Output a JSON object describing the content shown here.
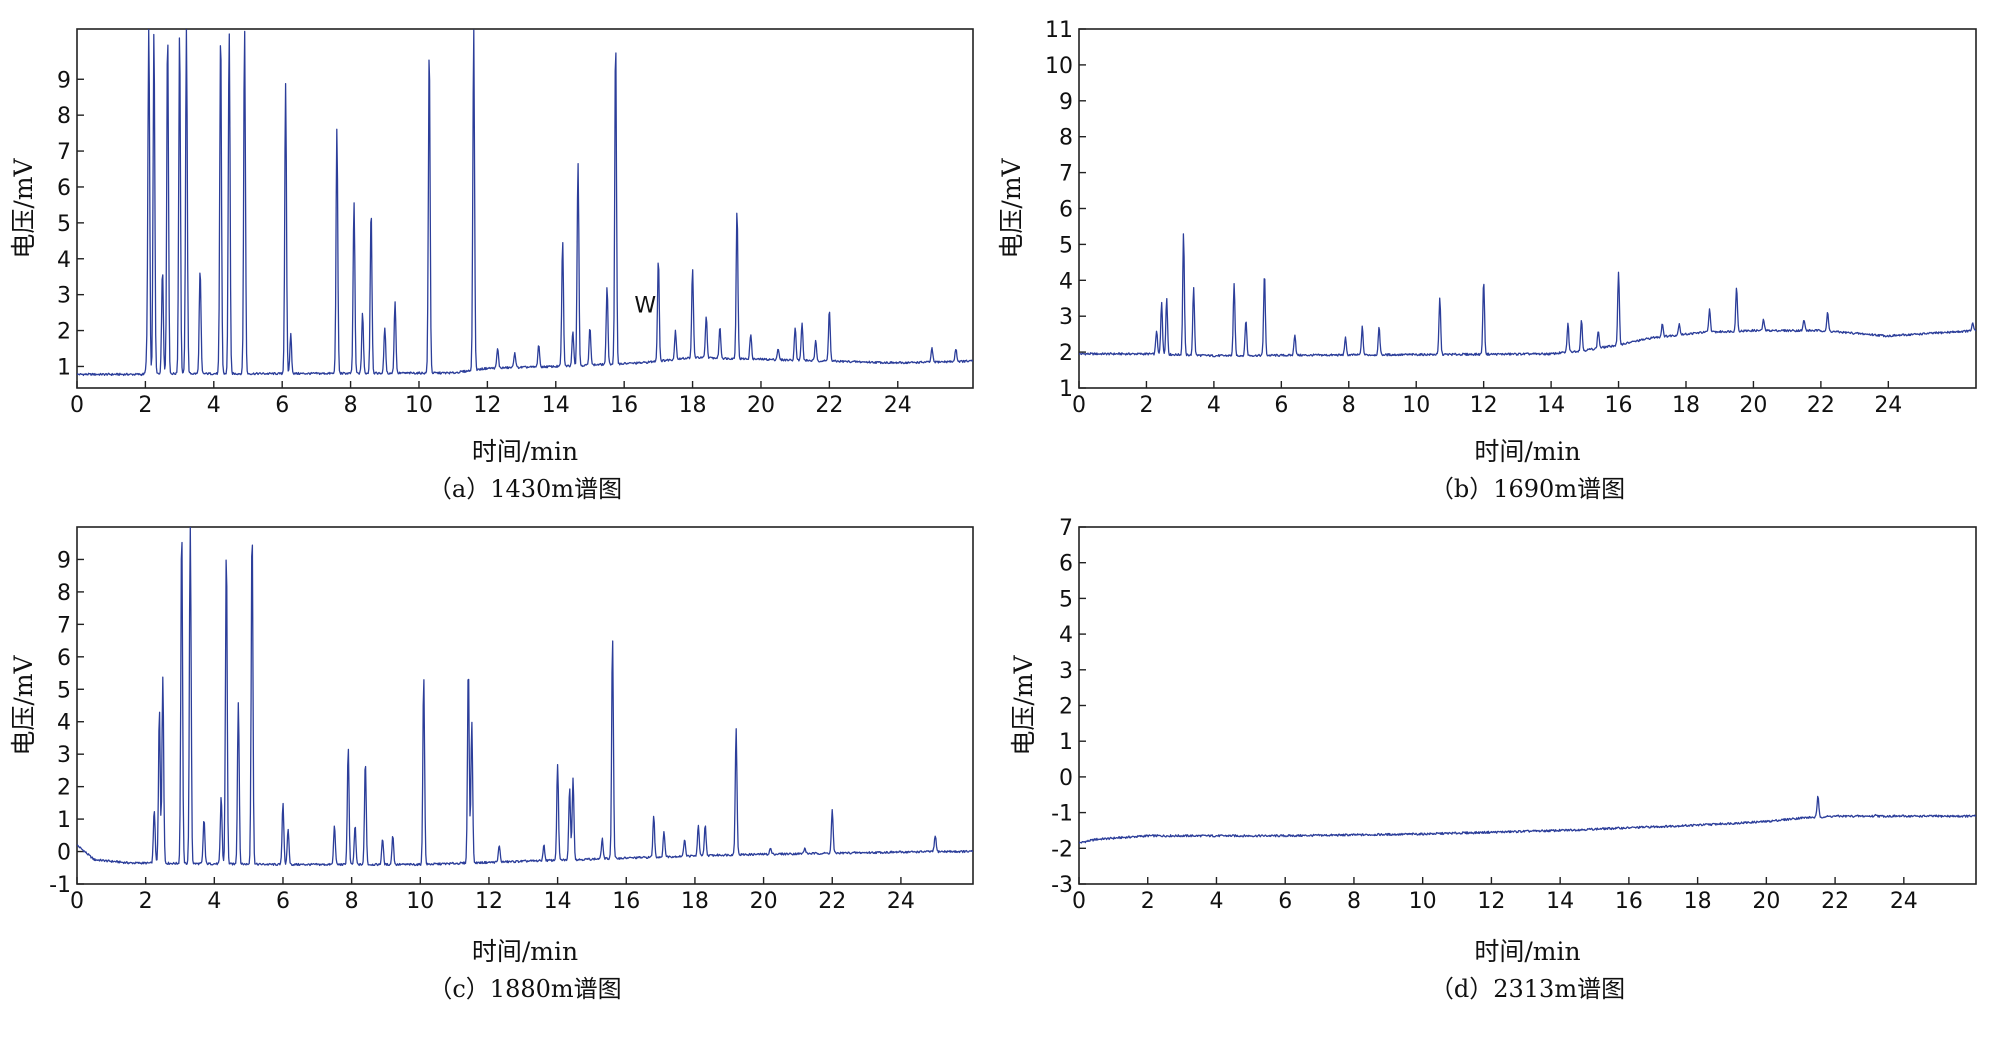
{
  "chart_data": [
    {
      "type": "line",
      "panel": "a",
      "caption": "（a）1430m谱图",
      "xlabel": "时间/min",
      "ylabel": "电压/mV",
      "xlim": [
        0,
        26.2
      ],
      "ylim": [
        0.4,
        10.4
      ],
      "xticks": [
        "0",
        "2",
        "4",
        "6",
        "8",
        "10",
        "12",
        "14",
        "16",
        "18",
        "20",
        "22",
        "24"
      ],
      "yticks": [
        "1",
        "2",
        "3",
        "4",
        "5",
        "6",
        "7",
        "8",
        "9"
      ],
      "annotations": [
        {
          "text": "W",
          "x": 16.3,
          "y": 2.5
        }
      ],
      "series": [
        {
          "name": "1430m",
          "baseline": [
            [
              0,
              0.78
            ],
            [
              1.9,
              0.78
            ],
            [
              2.0,
              0.8
            ],
            [
              6.0,
              0.8
            ],
            [
              11.0,
              0.82
            ],
            [
              12.0,
              0.95
            ],
            [
              14.0,
              1.0
            ],
            [
              16.5,
              1.1
            ],
            [
              18,
              1.25
            ],
            [
              20,
              1.2
            ],
            [
              22,
              1.15
            ],
            [
              24,
              1.1
            ],
            [
              26.2,
              1.15
            ]
          ],
          "peaks": [
            [
              2.05,
              1.4
            ],
            [
              2.1,
              10.4
            ],
            [
              2.25,
              10.4
            ],
            [
              2.5,
              3.7
            ],
            [
              2.65,
              10.4
            ],
            [
              3.0,
              10.4
            ],
            [
              3.2,
              10.4
            ],
            [
              3.6,
              3.7
            ],
            [
              4.2,
              10.4
            ],
            [
              4.45,
              10.4
            ],
            [
              4.9,
              10.4
            ],
            [
              6.1,
              8.9
            ],
            [
              6.25,
              1.9
            ],
            [
              7.6,
              7.6
            ],
            [
              8.1,
              5.6
            ],
            [
              8.35,
              2.5
            ],
            [
              8.6,
              5.4
            ],
            [
              9.0,
              2.1
            ],
            [
              9.3,
              2.8
            ],
            [
              10.3,
              9.9
            ],
            [
              11.6,
              10.4
            ],
            [
              12.3,
              1.5
            ],
            [
              12.8,
              1.4
            ],
            [
              13.5,
              1.6
            ],
            [
              14.2,
              4.5
            ],
            [
              14.5,
              2.0
            ],
            [
              14.65,
              6.7
            ],
            [
              15.0,
              2.1
            ],
            [
              15.5,
              3.2
            ],
            [
              15.75,
              10.1
            ],
            [
              17.0,
              4.0
            ],
            [
              17.5,
              2.0
            ],
            [
              18.0,
              3.7
            ],
            [
              18.4,
              2.4
            ],
            [
              18.8,
              2.1
            ],
            [
              19.3,
              5.4
            ],
            [
              19.7,
              1.9
            ],
            [
              20.5,
              1.5
            ],
            [
              21.0,
              2.1
            ],
            [
              21.2,
              2.2
            ],
            [
              21.6,
              1.7
            ],
            [
              22.0,
              2.6
            ],
            [
              25.0,
              1.5
            ],
            [
              25.7,
              1.5
            ]
          ]
        }
      ]
    },
    {
      "type": "line",
      "panel": "b",
      "caption": "（b）1690m谱图",
      "xlabel": "时间/min",
      "ylabel": "电压/mV",
      "xlim": [
        0,
        26.6
      ],
      "ylim": [
        1,
        11
      ],
      "xticks": [
        "0",
        "2",
        "4",
        "6",
        "8",
        "10",
        "12",
        "14",
        "16",
        "18",
        "20",
        "22",
        "24"
      ],
      "yticks": [
        "1",
        "2",
        "3",
        "4",
        "5",
        "6",
        "7",
        "8",
        "9",
        "10",
        "11"
      ],
      "series": [
        {
          "name": "1690m",
          "baseline": [
            [
              0,
              1.95
            ],
            [
              2,
              1.95
            ],
            [
              4,
              1.9
            ],
            [
              8,
              1.92
            ],
            [
              14,
              1.95
            ],
            [
              15,
              2.05
            ],
            [
              16,
              2.2
            ],
            [
              17,
              2.4
            ],
            [
              18.5,
              2.55
            ],
            [
              20,
              2.6
            ],
            [
              22,
              2.6
            ],
            [
              24,
              2.45
            ],
            [
              26.6,
              2.6
            ]
          ],
          "peaks": [
            [
              2.3,
              2.6
            ],
            [
              2.45,
              3.4
            ],
            [
              2.6,
              3.5
            ],
            [
              3.1,
              5.3
            ],
            [
              3.4,
              3.8
            ],
            [
              4.6,
              3.9
            ],
            [
              4.95,
              2.9
            ],
            [
              5.5,
              4.2
            ],
            [
              6.4,
              2.5
            ],
            [
              7.9,
              2.4
            ],
            [
              8.4,
              2.7
            ],
            [
              8.9,
              2.7
            ],
            [
              10.7,
              3.5
            ],
            [
              12.0,
              4.0
            ],
            [
              14.5,
              2.8
            ],
            [
              14.9,
              2.9
            ],
            [
              15.4,
              2.6
            ],
            [
              16.0,
              4.2
            ],
            [
              17.3,
              2.8
            ],
            [
              17.8,
              2.8
            ],
            [
              18.7,
              3.2
            ],
            [
              19.5,
              3.8
            ],
            [
              20.3,
              2.9
            ],
            [
              21.5,
              2.9
            ],
            [
              22.2,
              3.1
            ],
            [
              26.5,
              2.8
            ]
          ]
        }
      ]
    },
    {
      "type": "line",
      "panel": "c",
      "caption": "（c）1880m谱图",
      "xlabel": "时间/min",
      "ylabel": "电压/mV",
      "xlim": [
        0,
        26.1
      ],
      "ylim": [
        -1,
        10
      ],
      "xticks": [
        "0",
        "2",
        "4",
        "6",
        "8",
        "10",
        "12",
        "14",
        "16",
        "18",
        "20",
        "22",
        "24"
      ],
      "yticks": [
        "-1",
        "0",
        "1",
        "2",
        "3",
        "4",
        "5",
        "6",
        "7",
        "8",
        "9"
      ],
      "series": [
        {
          "name": "1880m",
          "baseline": [
            [
              0,
              0.2
            ],
            [
              0.5,
              -0.25
            ],
            [
              1.5,
              -0.35
            ],
            [
              6,
              -0.4
            ],
            [
              10,
              -0.4
            ],
            [
              13,
              -0.3
            ],
            [
              16,
              -0.2
            ],
            [
              19,
              -0.1
            ],
            [
              22,
              -0.05
            ],
            [
              25,
              0.0
            ],
            [
              25.2,
              0.0
            ]
          ],
          "peaks": [
            [
              2.25,
              1.3
            ],
            [
              2.4,
              4.4
            ],
            [
              2.5,
              5.4
            ],
            [
              3.05,
              10
            ],
            [
              3.3,
              10
            ],
            [
              3.7,
              1.0
            ],
            [
              4.2,
              1.7
            ],
            [
              4.35,
              9.3
            ],
            [
              4.7,
              4.6
            ],
            [
              5.1,
              10
            ],
            [
              6.0,
              1.5
            ],
            [
              6.15,
              0.7
            ],
            [
              7.5,
              0.8
            ],
            [
              7.9,
              3.2
            ],
            [
              8.1,
              0.8
            ],
            [
              8.4,
              2.8
            ],
            [
              8.9,
              0.4
            ],
            [
              9.2,
              0.5
            ],
            [
              10.1,
              5.4
            ],
            [
              11.4,
              5.7
            ],
            [
              11.5,
              4.0
            ],
            [
              12.3,
              0.2
            ],
            [
              13.6,
              0.2
            ],
            [
              14.0,
              2.7
            ],
            [
              14.35,
              2.0
            ],
            [
              14.45,
              2.3
            ],
            [
              15.3,
              0.4
            ],
            [
              15.6,
              6.6
            ],
            [
              16.8,
              1.1
            ],
            [
              17.1,
              0.6
            ],
            [
              17.7,
              0.4
            ],
            [
              18.1,
              0.8
            ],
            [
              18.3,
              0.8
            ],
            [
              19.2,
              3.8
            ],
            [
              20.2,
              0.1
            ],
            [
              21.2,
              0.1
            ],
            [
              22.0,
              1.3
            ],
            [
              25.0,
              0.5
            ]
          ]
        }
      ]
    },
    {
      "type": "line",
      "panel": "d",
      "caption": "（d）2313m谱图",
      "xlabel": "时间/min",
      "ylabel": "电压/mV",
      "xlim": [
        0,
        26.1
      ],
      "ylim": [
        -3,
        7
      ],
      "xticks": [
        "0",
        "2",
        "4",
        "6",
        "8",
        "10",
        "12",
        "14",
        "16",
        "18",
        "20",
        "22",
        "24"
      ],
      "yticks": [
        "-3",
        "-2",
        "-1",
        "0",
        "1",
        "2",
        "3",
        "4",
        "5",
        "6",
        "7"
      ],
      "series": [
        {
          "name": "2313m",
          "baseline": [
            [
              0,
              -1.85
            ],
            [
              0.5,
              -1.75
            ],
            [
              2,
              -1.65
            ],
            [
              6,
              -1.65
            ],
            [
              10,
              -1.6
            ],
            [
              14,
              -1.5
            ],
            [
              18,
              -1.35
            ],
            [
              20,
              -1.25
            ],
            [
              21,
              -1.15
            ],
            [
              22,
              -1.1
            ],
            [
              26.1,
              -1.1
            ]
          ],
          "peaks": [
            [
              21.5,
              -0.55
            ],
            [
              23.2,
              -1.05
            ]
          ]
        }
      ]
    }
  ]
}
